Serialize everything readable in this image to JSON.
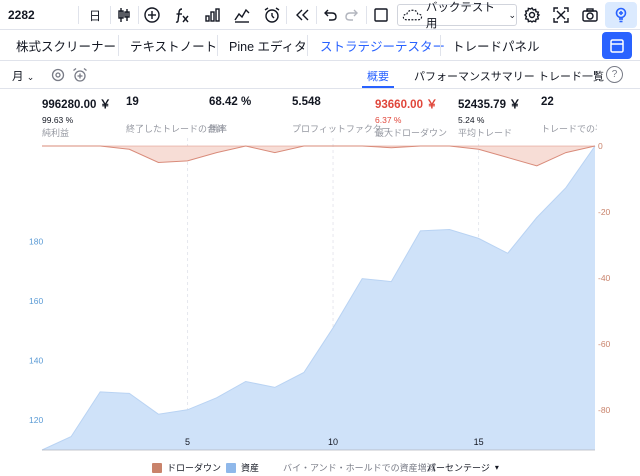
{
  "toolbar": {
    "symbol": "2282",
    "interval": "日",
    "backtest_label": "バックテスト用",
    "icons": [
      "candle-icon",
      "plus-circle-icon",
      "fx-icon",
      "bar-chart-icon",
      "chart-template-icon",
      "alarm-plus-icon",
      "replay-icon",
      "undo-icon",
      "redo-icon",
      "rectangle-icon",
      "cloud-icon",
      "gear-icon",
      "fullscreen-icon",
      "camera-icon",
      "bulb-icon"
    ]
  },
  "tabs": [
    {
      "label": "株式スクリーナー"
    },
    {
      "label": "テキストノート"
    },
    {
      "label": "Pine エディタ"
    },
    {
      "label": "ストラテジーテスター"
    },
    {
      "label": "トレードパネル"
    }
  ],
  "subheader": {
    "period": "月",
    "tabs": [
      "概要",
      "パフォーマンスサマリー",
      "トレード一覧"
    ],
    "help": "?"
  },
  "metrics": [
    {
      "value": "996280.00 ￥",
      "sub": "99.63 %",
      "label": "純利益",
      "color": "normal"
    },
    {
      "value": "19",
      "sub": "",
      "label": "終了したトレードの合計",
      "color": "normal"
    },
    {
      "value": "68.42 %",
      "sub": "",
      "label": "勝率",
      "color": "normal"
    },
    {
      "value": "5.548",
      "sub": "",
      "label": "プロフィットファクター",
      "color": "normal"
    },
    {
      "value": "93660.00 ￥",
      "sub": "6.37 %",
      "label": "最大ドローダウン",
      "color": "red"
    },
    {
      "value": "52435.79 ￥",
      "sub": "5.24 %",
      "label": "平均トレード",
      "color": "normal"
    },
    {
      "value": "22",
      "sub": "",
      "label": "トレードでの平",
      "color": "normal"
    }
  ],
  "chart_data": {
    "type": "area",
    "x": [
      0,
      1,
      2,
      3,
      4,
      5,
      6,
      7,
      8,
      9,
      10,
      11,
      12,
      13,
      14,
      15,
      16,
      17,
      18,
      19
    ],
    "series": [
      {
        "name": "資産",
        "axis": "left",
        "color": "#cfe2f9",
        "values": [
          110,
          114.5,
          129.5,
          129,
          122,
          123.5,
          127.5,
          133,
          131,
          136,
          151,
          167.5,
          166.5,
          183.5,
          184,
          181,
          176,
          188,
          198,
          212
        ]
      },
      {
        "name": "ドローダウン",
        "axis": "right",
        "color": "#f7ddd6",
        "values": [
          0,
          0,
          0,
          -1,
          -5,
          -4.5,
          -2,
          0,
          -2,
          0,
          0,
          0,
          -0.5,
          0,
          0,
          -1,
          -3.5,
          -6,
          -2,
          0
        ]
      }
    ],
    "xticks": [
      5,
      10,
      15
    ],
    "yticks_left": [
      120,
      140,
      160,
      180
    ],
    "yticks_right": [
      0,
      -20,
      -40,
      -60,
      -80
    ]
  },
  "legend": {
    "drawdown": "ドローダウン",
    "equity": "資産",
    "buyhold": "バイ・アンド・ホールドでの資産増減",
    "percent": "パーセンテージ"
  },
  "colors": {
    "accent": "#2962ff",
    "equity_fill": "#cfe2f9",
    "drawdown_fill": "#f7ddd6",
    "drawdown_legend": "#c9836b",
    "equity_legend": "#8fb8ea",
    "negative": "#e0463a"
  }
}
